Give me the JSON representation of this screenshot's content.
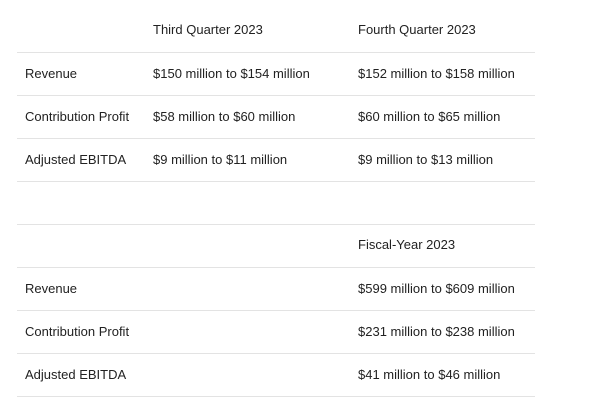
{
  "table1": {
    "columns": [
      "Third Quarter 2023",
      "Fourth Quarter 2023"
    ],
    "rows": [
      {
        "label": "Revenue",
        "values": [
          "$150 million to $154 million",
          "$152 million to $158 million"
        ]
      },
      {
        "label": "Contribution Profit",
        "values": [
          "$58 million to $60 million",
          "$60 million to $65 million"
        ]
      },
      {
        "label": "Adjusted EBITDA",
        "values": [
          "$9 million to $11 million",
          "$9 million to $13 million"
        ]
      }
    ]
  },
  "table2": {
    "columns": [
      "Fiscal-Year 2023"
    ],
    "rows": [
      {
        "label": "Revenue",
        "values": [
          "$599 million to $609 million"
        ]
      },
      {
        "label": "Contribution Profit",
        "values": [
          "$231 million to $238 million"
        ]
      },
      {
        "label": "Adjusted EBITDA",
        "values": [
          "$41 million to $46 million"
        ]
      }
    ]
  }
}
